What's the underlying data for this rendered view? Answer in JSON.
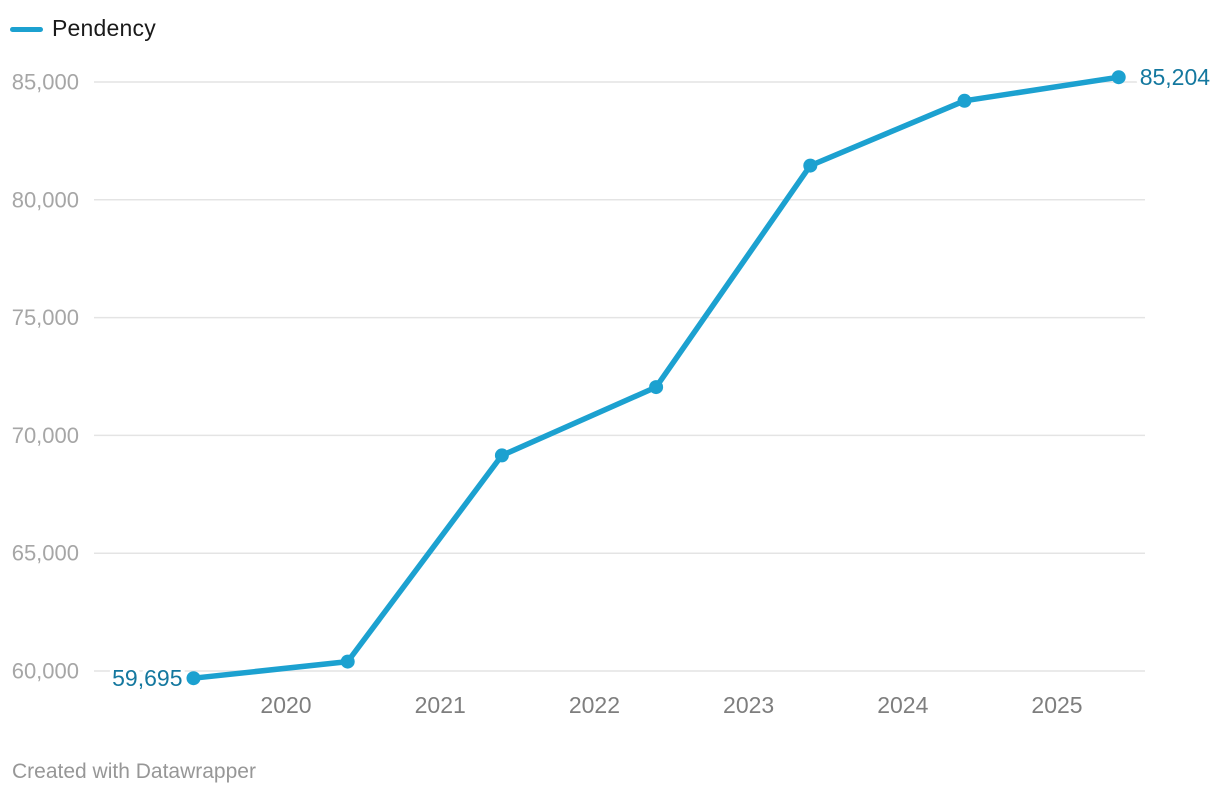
{
  "legend": {
    "label": "Pendency"
  },
  "footer": {
    "credit": "Created with Datawrapper"
  },
  "chart_data": {
    "type": "line",
    "title": "",
    "xlabel": "",
    "ylabel": "",
    "grid": true,
    "legend_position": "top-left",
    "series": [
      {
        "name": "Pendency",
        "x": [
          2019.4,
          2020.4,
          2021.4,
          2022.4,
          2023.4,
          2024.4,
          2025.4
        ],
        "values": [
          59695,
          60400,
          69150,
          72050,
          81450,
          84200,
          85204
        ],
        "start_label": "59,695",
        "end_label": "85,204"
      }
    ],
    "x_ticks": [
      "2020",
      "2021",
      "2022",
      "2023",
      "2024",
      "2025"
    ],
    "y_ticks": [
      60000,
      65000,
      70000,
      75000,
      80000,
      85000
    ],
    "xlim": [
      2019.15,
      2025.6
    ],
    "ylim": [
      59500,
      85600
    ],
    "colors": {
      "line": "#1CA1D0",
      "point": "#1CA1D0",
      "value_label": "#14789F",
      "grid_line": "#E4E4E4",
      "y_tick_label": "#A6A6A6",
      "x_tick_label": "#7E7E7E",
      "legend_text": "#1A1A1A",
      "footer_text": "#979797",
      "background": "#FFFFFF"
    }
  }
}
